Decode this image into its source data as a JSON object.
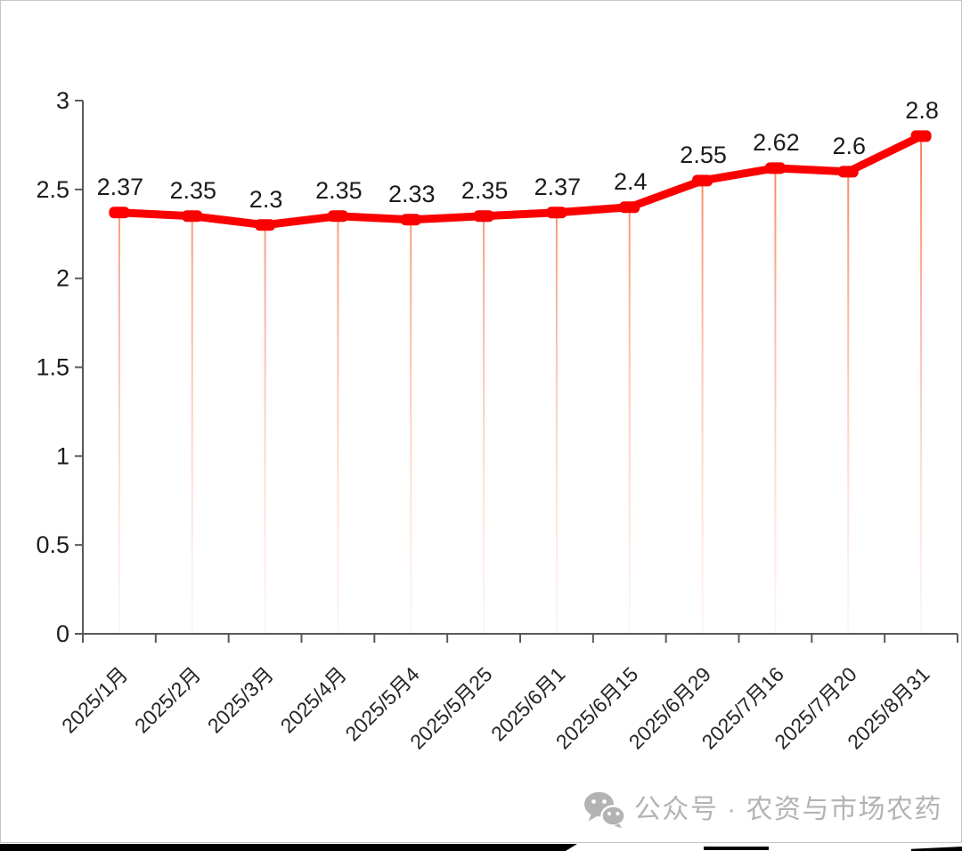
{
  "chart_data": {
    "type": "line",
    "title": "",
    "categories": [
      "2025/1月",
      "2025/2月",
      "2025/3月",
      "2025/4月",
      "2025/5月4",
      "2025/5月25",
      "2025/6月1",
      "2025/6月15",
      "2025/6月29",
      "2025/7月16",
      "2025/7月20",
      "2025/8月31"
    ],
    "values": [
      2.37,
      2.35,
      2.3,
      2.35,
      2.33,
      2.35,
      2.37,
      2.4,
      2.55,
      2.62,
      2.6,
      2.8
    ],
    "point_labels": [
      "2.37",
      "2.35",
      "2.3",
      "2.35",
      "2.33",
      "2.35",
      "2.37",
      "2.4",
      "2.55",
      "2.62",
      "2.6",
      "2.8"
    ],
    "xlabel": "",
    "ylabel": "",
    "ylim": [
      0,
      3
    ],
    "ytick_step": 0.5,
    "ytick_labels": [
      "0",
      "0.5",
      "1",
      "1.5",
      "2",
      "2.5",
      "3"
    ],
    "grid": false,
    "legend": "none",
    "x_label_rotation_deg": 45,
    "droplines": true,
    "styles": {
      "line_color": "#fb0000",
      "marker_color": "#fb0000",
      "dropline_color": "#f5764e",
      "dropline_fade_color": "#ffd9c9",
      "axis_color": "#595959",
      "tick_label_color": "#1c1c1c",
      "point_label_color": "#1c1c1c",
      "x_label_color": "#262626"
    }
  },
  "watermark": {
    "icon": "wechat-icon",
    "text": "公众号 · 农资与市场农药",
    "color": "#b3b3b3"
  }
}
